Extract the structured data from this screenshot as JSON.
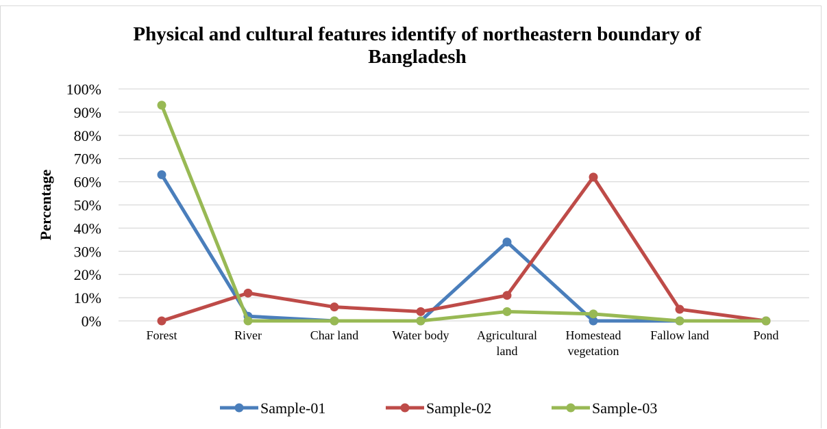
{
  "chart_data": {
    "type": "line",
    "title_lines": [
      "Physical and cultural features identify of northeastern boundary of",
      "Bangladesh"
    ],
    "xlabel": "",
    "ylabel": "Percentage",
    "categories": [
      [
        "Forest"
      ],
      [
        "River"
      ],
      [
        "Char land"
      ],
      [
        "Water body"
      ],
      [
        "Agricultural",
        "land"
      ],
      [
        "Homestead",
        "vegetation"
      ],
      [
        "Fallow land"
      ],
      [
        "Pond"
      ]
    ],
    "ylim": [
      0,
      100
    ],
    "yticks": [
      "0%",
      "10%",
      "20%",
      "30%",
      "40%",
      "50%",
      "60%",
      "70%",
      "80%",
      "90%",
      "100%"
    ],
    "grid": true,
    "legend_position": "bottom",
    "series": [
      {
        "name": "Sample-01",
        "color": "#4a7ebb",
        "values": [
          63,
          2,
          0,
          0,
          34,
          0,
          0,
          0
        ]
      },
      {
        "name": "Sample-02",
        "color": "#be4b48",
        "values": [
          0,
          12,
          6,
          4,
          11,
          62,
          5,
          0
        ]
      },
      {
        "name": "Sample-03",
        "color": "#98b954",
        "values": [
          93,
          0,
          0,
          0,
          4,
          3,
          0,
          0
        ]
      }
    ]
  }
}
